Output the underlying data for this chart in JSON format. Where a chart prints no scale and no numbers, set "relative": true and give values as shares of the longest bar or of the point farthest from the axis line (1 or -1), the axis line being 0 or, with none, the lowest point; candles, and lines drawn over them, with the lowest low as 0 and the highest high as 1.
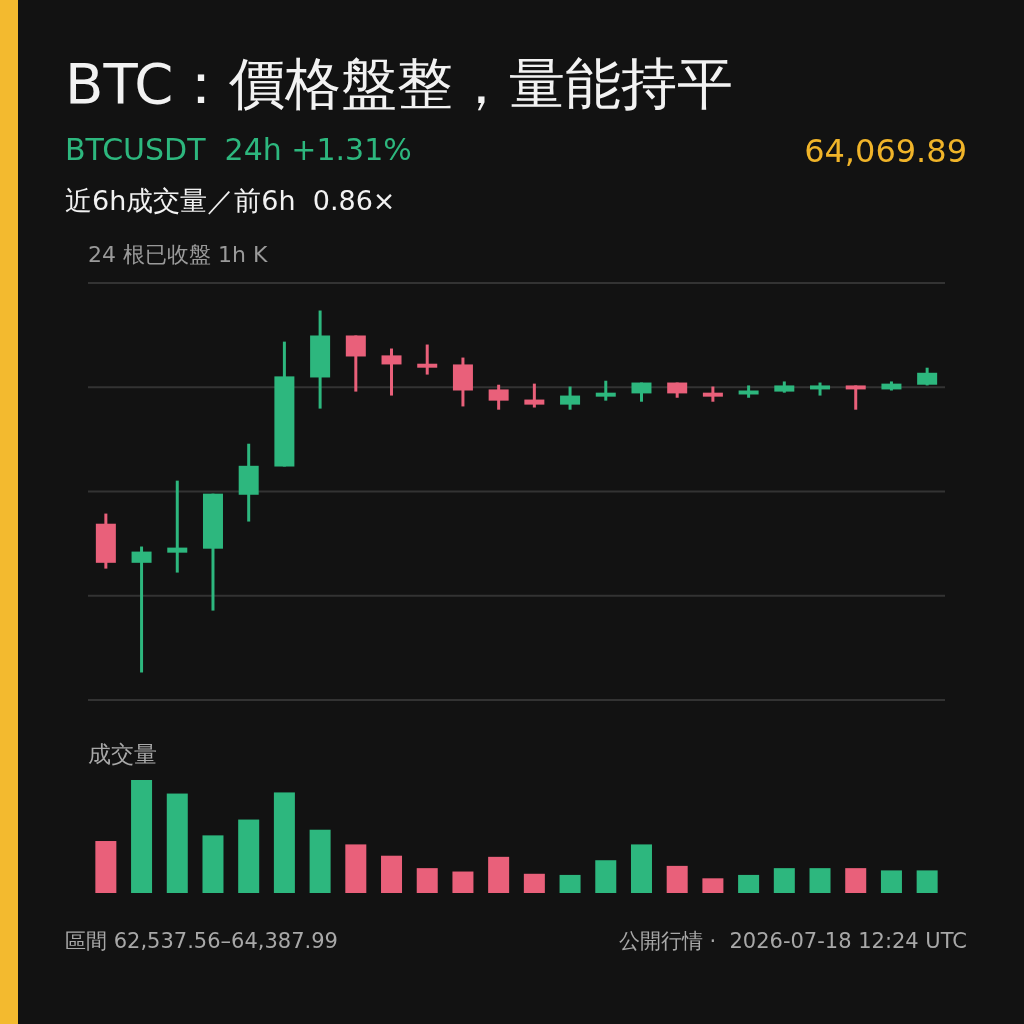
{
  "chart_data": [
    {
      "type": "candlestick",
      "title": "BTC：價格盤整，量能持平",
      "subtitle": "BTCUSDT  24h +1.31%",
      "annotations": [
        "64,069.89",
        "近6h成交量／前6h  0.86×",
        "24 根已收盤 1h K",
        "區間 62,537.56–64,387.99",
        "公開行情 ·  2026-07-18 12:24 UTC"
      ],
      "relative": true,
      "categories": [
        null,
        null,
        null,
        null,
        null,
        null,
        null,
        null,
        null,
        null,
        null,
        null,
        null,
        null,
        null,
        null,
        null,
        null,
        null,
        null,
        null,
        null,
        null,
        null
      ],
      "ohlc": [
        [
          0.411,
          0.439,
          0.287,
          0.303
        ],
        [
          0.303,
          0.348,
          0,
          0.334
        ],
        [
          0.331,
          0.53,
          0.276,
          0.345
        ],
        [
          0.342,
          0.494,
          0.171,
          0.494
        ],
        [
          0.491,
          0.632,
          0.417,
          0.571
        ],
        [
          0.569,
          0.914,
          0.569,
          0.818
        ],
        [
          0.815,
          1,
          0.729,
          0.931
        ],
        [
          0.931,
          0.931,
          0.776,
          0.873
        ],
        [
          0.876,
          0.895,
          0.765,
          0.851
        ],
        [
          0.853,
          0.906,
          0.823,
          0.842
        ],
        [
          0.851,
          0.87,
          0.735,
          0.779
        ],
        [
          0.782,
          0.795,
          0.726,
          0.751
        ],
        [
          0.754,
          0.798,
          0.732,
          0.74
        ],
        [
          0.74,
          0.79,
          0.726,
          0.765
        ],
        [
          0.762,
          0.806,
          0.751,
          0.773
        ],
        [
          0.771,
          0.801,
          0.748,
          0.801
        ],
        [
          0.801,
          0.801,
          0.759,
          0.771
        ],
        [
          0.773,
          0.79,
          0.748,
          0.762
        ],
        [
          0.768,
          0.793,
          0.759,
          0.779
        ],
        [
          0.776,
          0.804,
          0.773,
          0.793
        ],
        [
          0.782,
          0.801,
          0.765,
          0.793
        ],
        [
          0.793,
          0.793,
          0.726,
          0.782
        ],
        [
          0.782,
          0.804,
          0.779,
          0.798
        ],
        [
          0.795,
          0.842,
          0.793,
          0.828
        ]
      ],
      "colors": [
        "#e9607a",
        "#2db77e",
        "#2db77e",
        "#2db77e",
        "#2db77e",
        "#2db77e",
        "#2db77e",
        "#e9607a",
        "#e9607a",
        "#e9607a",
        "#e9607a",
        "#e9607a",
        "#e9607a",
        "#2db77e",
        "#2db77e",
        "#2db77e",
        "#e9607a",
        "#e9607a",
        "#2db77e",
        "#2db77e",
        "#2db77e",
        "#e9607a",
        "#2db77e",
        "#2db77e"
      ],
      "grid": true
    },
    {
      "type": "bar",
      "title": "成交量",
      "relative": true,
      "categories": [
        null,
        null,
        null,
        null,
        null,
        null,
        null,
        null,
        null,
        null,
        null,
        null,
        null,
        null,
        null,
        null,
        null,
        null,
        null,
        null,
        null,
        null,
        null,
        null
      ],
      "values": [
        0.46,
        1,
        0.88,
        0.51,
        0.65,
        0.89,
        0.56,
        0.43,
        0.33,
        0.22,
        0.19,
        0.32,
        0.17,
        0.16,
        0.29,
        0.43,
        0.24,
        0.13,
        0.16,
        0.22,
        0.22,
        0.22,
        0.2,
        0.2
      ],
      "colors": [
        "#e9607a",
        "#2db77e",
        "#2db77e",
        "#2db77e",
        "#2db77e",
        "#2db77e",
        "#2db77e",
        "#e9607a",
        "#e9607a",
        "#e9607a",
        "#e9607a",
        "#e9607a",
        "#e9607a",
        "#2db77e",
        "#2db77e",
        "#2db77e",
        "#e9607a",
        "#e9607a",
        "#2db77e",
        "#2db77e",
        "#2db77e",
        "#e9607a",
        "#2db77e",
        "#2db77e"
      ]
    }
  ]
}
